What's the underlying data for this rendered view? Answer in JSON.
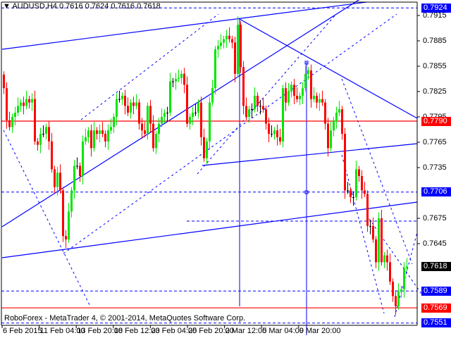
{
  "header": {
    "symbol": "AUDUSD,H4",
    "ohlc": "0.7616 0.7624 0.7616 0.7618"
  },
  "copyright": "RoboForex - MetaTrader 4, © 2001-2014, MetaQuotes Software Corp.",
  "colors": {
    "bull": "#00e600",
    "bear": "#ff0000",
    "line": "#0000ff",
    "level_red": "#ff0000",
    "current": "#000000"
  },
  "chart_data": {
    "type": "candlestick",
    "symbol": "AUDUSD",
    "timeframe": "H4",
    "ylim": [
      0.7545,
      0.7933
    ],
    "x_tick_labels": [
      "6 Feb 2015",
      "11 Feb 04:00",
      "13 Feb 20:00",
      "18 Feb 12:00",
      "23 Feb 04:00",
      "25 Feb 20:00",
      "2 Mar 12:00",
      "5 Mar 04:00",
      "9 Mar 20:00"
    ],
    "y_tick_labels": [
      "0.7915",
      "0.7885",
      "0.7855",
      "0.7825",
      "0.7795",
      "0.7765",
      "0.7735",
      "0.7675",
      "0.7645"
    ],
    "first_open": 0.7845,
    "closes": [
      0.7829,
      0.7791,
      0.7783,
      0.7795,
      0.78,
      0.7808,
      0.7812,
      0.7808,
      0.7816,
      0.7812,
      0.7816,
      0.7766,
      0.7762,
      0.7775,
      0.7775,
      0.7783,
      0.7766,
      0.7733,
      0.7712,
      0.7729,
      0.7708,
      0.7654,
      0.765,
      0.7683,
      0.7708,
      0.7737,
      0.7737,
      0.7725,
      0.7766,
      0.7771,
      0.7779,
      0.7758,
      0.7779,
      0.7775,
      0.7779,
      0.7775,
      0.7766,
      0.7779,
      0.7783,
      0.7795,
      0.7816,
      0.7816,
      0.782,
      0.7808,
      0.78,
      0.7812,
      0.7808,
      0.7812,
      0.7787,
      0.7779,
      0.7775,
      0.7808,
      0.7787,
      0.7758,
      0.7775,
      0.7787,
      0.7795,
      0.78,
      0.78,
      0.7837,
      0.7837,
      0.784,
      0.7841,
      0.7846,
      0.7833,
      0.7787,
      0.7795,
      0.78,
      0.78,
      0.7812,
      0.7771,
      0.7746,
      0.7766,
      0.7812,
      0.7829,
      0.7875,
      0.7879,
      0.7883,
      0.7887,
      0.7891,
      0.7887,
      0.7883,
      0.7846,
      0.7904,
      0.7854,
      0.7808,
      0.7795,
      0.7804,
      0.7804,
      0.782,
      0.7808,
      0.7808,
      0.7804,
      0.7787,
      0.7775,
      0.7775,
      0.7779,
      0.7771,
      0.7766,
      0.7829,
      0.7812,
      0.7825,
      0.7833,
      0.782,
      0.7816,
      0.782,
      0.7829,
      0.7846,
      0.785,
      0.7816,
      0.782,
      0.7812,
      0.7816,
      0.7812,
      0.7787,
      0.7758,
      0.7779,
      0.7791,
      0.78,
      0.7804,
      0.7775,
      0.7708,
      0.7708,
      0.77,
      0.77,
      0.7733,
      0.7725,
      0.7708,
      0.7704,
      0.7666,
      0.7666,
      0.765,
      0.7623,
      0.7675,
      0.7623,
      0.7631,
      0.7623,
      0.76,
      0.7583,
      0.7571,
      0.7588,
      0.7591,
      0.7616,
      0.7618
    ],
    "levels": [
      {
        "price": "0.7924",
        "style": "dashed",
        "color": "#0000ff"
      },
      {
        "price": "0.7790",
        "style": "solid",
        "color": "#ff0000"
      },
      {
        "price": "0.7706",
        "style": "dashed",
        "color": "#0000ff"
      },
      {
        "price": "0.7589",
        "style": "dashed",
        "color": "#0000ff"
      },
      {
        "price": "0.7569",
        "style": "solid",
        "color": "#ff0000"
      },
      {
        "price": "0.7551",
        "style": "dashed",
        "color": "#0000ff"
      }
    ],
    "current_price": "0.7618"
  }
}
